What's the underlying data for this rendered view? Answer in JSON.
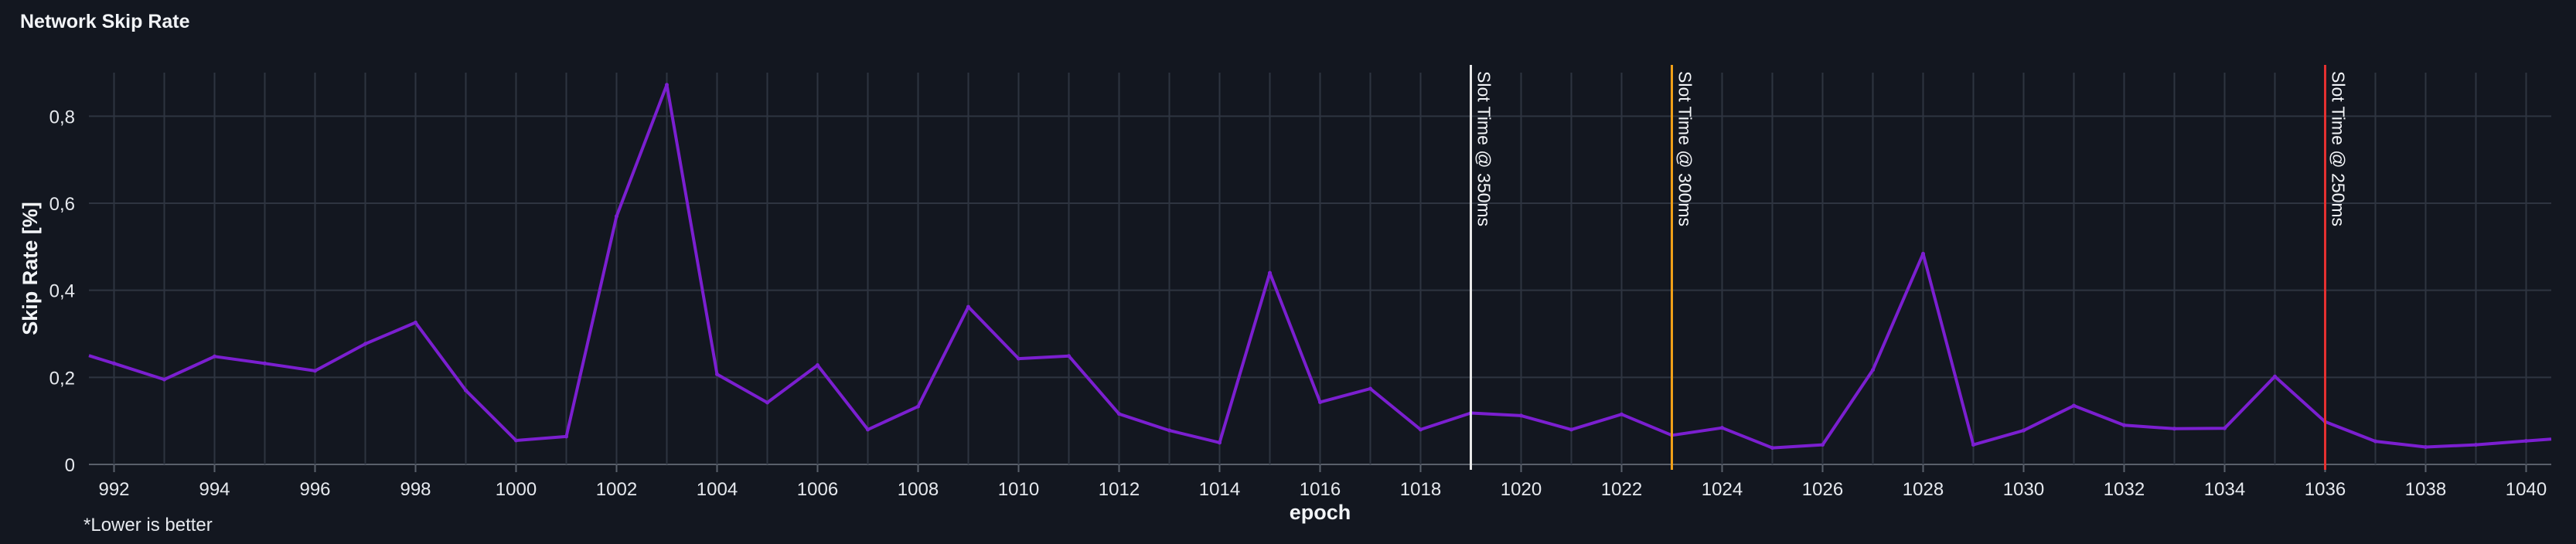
{
  "panel": {
    "title": "Network Skip Rate",
    "footnote": "*Lower is better"
  },
  "colors": {
    "background": "#131720",
    "grid": "#2e3440",
    "series": "#7b1fd0",
    "text": "#e6e9ee",
    "marker_350": "#e8e8e8",
    "marker_300": "#f0a018",
    "marker_250": "#e53030"
  },
  "chart_data": {
    "type": "line",
    "title": "Network Skip Rate",
    "xlabel": "epoch",
    "ylabel": "Skip Rate [%]",
    "xlim": [
      991.5,
      1040.5
    ],
    "ylim": [
      0,
      0.9
    ],
    "xticks": [
      992,
      994,
      996,
      998,
      1000,
      1002,
      1004,
      1006,
      1008,
      1010,
      1012,
      1014,
      1016,
      1018,
      1020,
      1022,
      1024,
      1026,
      1028,
      1030,
      1032,
      1034,
      1036,
      1038,
      1040
    ],
    "yticks": [
      0,
      0.2,
      0.4,
      0.6,
      0.8
    ],
    "ytick_labels": [
      "0",
      "0,2",
      "0,4",
      "0,6",
      "0,8"
    ],
    "grid": true,
    "series": [
      {
        "x": [
          991.5,
          992,
          993,
          994,
          995,
          996,
          997,
          998,
          999,
          1000,
          1001,
          1002,
          1003,
          1004,
          1005,
          1006,
          1007,
          1008,
          1009,
          1010,
          1011,
          1012,
          1013,
          1014,
          1015,
          1016,
          1017,
          1018,
          1019,
          1020,
          1021,
          1022,
          1023,
          1024,
          1025,
          1026,
          1027,
          1028,
          1029,
          1030,
          1031,
          1032,
          1033,
          1034,
          1035,
          1036,
          1037,
          1038,
          1039,
          1040,
          1040.5
        ],
        "y": [
          0.25,
          0.232,
          0.195,
          0.248,
          0.232,
          0.215,
          0.277,
          0.326,
          0.17,
          0.055,
          0.064,
          0.57,
          0.872,
          0.207,
          0.142,
          0.228,
          0.08,
          0.133,
          0.362,
          0.243,
          0.249,
          0.116,
          0.078,
          0.05,
          0.44,
          0.143,
          0.174,
          0.08,
          0.118,
          0.112,
          0.08,
          0.115,
          0.067,
          0.084,
          0.038,
          0.045,
          0.217,
          0.484,
          0.045,
          0.078,
          0.135,
          0.09,
          0.082,
          0.083,
          0.202,
          0.098,
          0.053,
          0.04,
          0.045,
          0.054,
          0.058
        ]
      }
    ],
    "annotations": [
      {
        "x": 1019,
        "label": "Slot Time @ 350ms",
        "color": "#e8e8e8"
      },
      {
        "x": 1023,
        "label": "Slot Time @ 300ms",
        "color": "#f0a018"
      },
      {
        "x": 1036,
        "label": "Slot Time @ 250ms",
        "color": "#e53030"
      }
    ]
  }
}
